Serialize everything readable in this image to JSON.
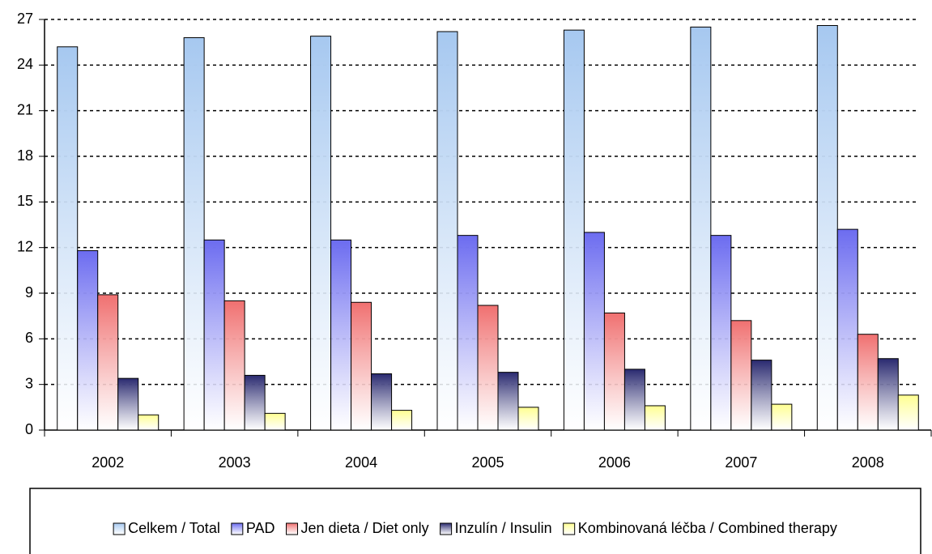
{
  "chart_data": {
    "type": "bar",
    "categories": [
      "2002",
      "2003",
      "2004",
      "2005",
      "2006",
      "2007",
      "2008"
    ],
    "series": [
      {
        "name": "Celkem / Total",
        "color": "#a6c8f0",
        "values": [
          25.2,
          25.8,
          25.9,
          26.2,
          26.3,
          26.5,
          26.6
        ]
      },
      {
        "name": "PAD",
        "color": "#6c6cf0",
        "values": [
          11.8,
          12.5,
          12.5,
          12.8,
          13.0,
          12.8,
          13.2
        ]
      },
      {
        "name": "Jen dieta / Diet only",
        "color": "#f07070",
        "values": [
          8.9,
          8.5,
          8.4,
          8.2,
          7.7,
          7.2,
          6.3
        ]
      },
      {
        "name": "Inzulín / Insulin",
        "color": "#2a2a70",
        "values": [
          3.4,
          3.6,
          3.7,
          3.8,
          4.0,
          4.6,
          4.7
        ]
      },
      {
        "name": "Kombinovaná léčba / Combined therapy",
        "color": "#ffff90",
        "values": [
          1.0,
          1.1,
          1.3,
          1.5,
          1.6,
          1.7,
          2.3
        ]
      }
    ],
    "ylim": [
      0,
      27
    ],
    "yticks": [
      0,
      3,
      6,
      9,
      12,
      15,
      18,
      21,
      24,
      27
    ],
    "grid": true,
    "legend": "bottom"
  }
}
